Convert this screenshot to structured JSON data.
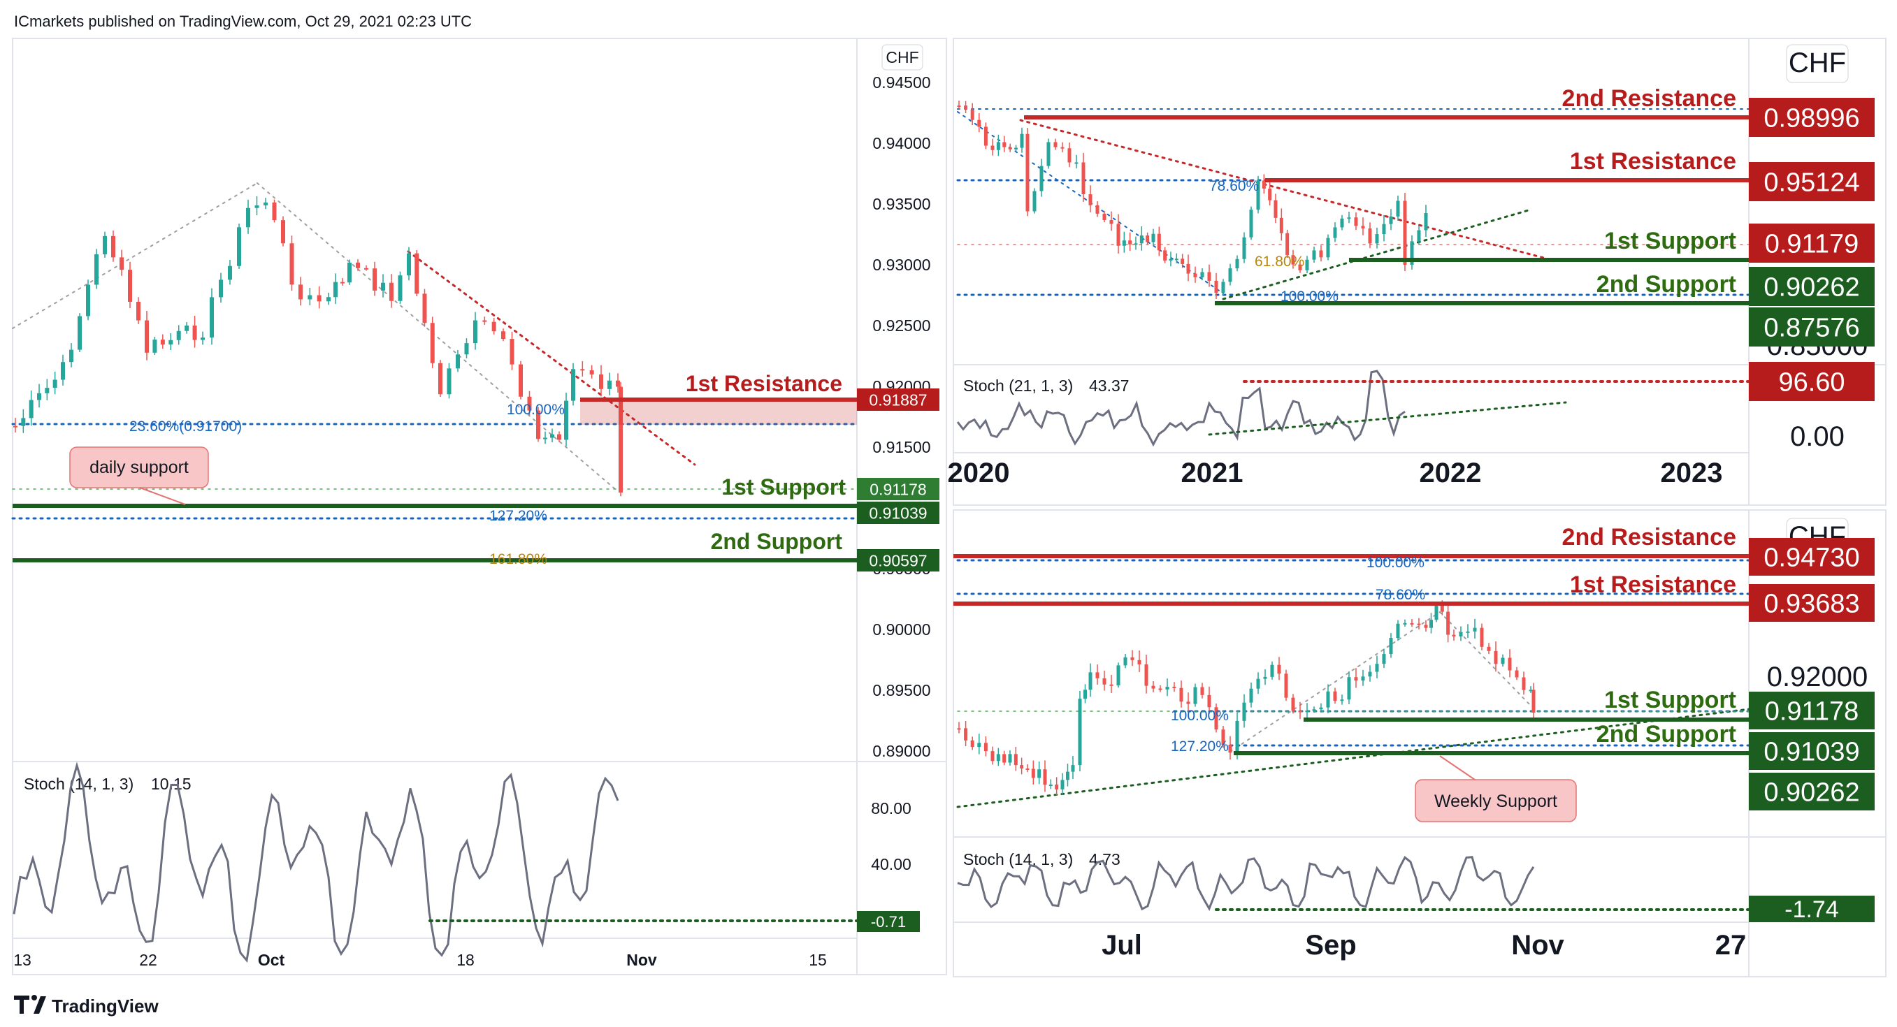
{
  "header": {
    "publisher_line": "ICmarkets published on TradingView.com, Oct 29, 2021 02:23 UTC",
    "brand": "TradingView"
  },
  "colors": {
    "up": "#26a69a",
    "down": "#ef5350",
    "resistance": "#c62828",
    "support": "#1b5e20",
    "fib_blue": "#1565c0",
    "fib_gold": "#b8860b",
    "stoch_line": "#6b6f80"
  },
  "chart_data": [
    {
      "id": "daily",
      "type": "candlestick",
      "currency": "CHF",
      "x_ticks": [
        "13",
        "22",
        "Oct",
        "18",
        "Nov",
        "15"
      ],
      "y_ticks": [
        "0.94500",
        "0.94000",
        "0.93500",
        "0.93000",
        "0.92500",
        "0.92000",
        "0.91500",
        "0.91000",
        "0.90500",
        "0.90000",
        "0.89500",
        "0.89000"
      ],
      "ylim": [
        0.887,
        0.9475
      ],
      "levels": [
        {
          "label": "1st Resistance",
          "price": "0.91887",
          "role": "resistance"
        },
        {
          "label": "1st Support",
          "price": "0.91039",
          "role": "support"
        },
        {
          "label": "2nd Support",
          "price": "0.90597",
          "role": "support"
        }
      ],
      "current_price": "0.91178",
      "fib_labels": [
        "23.60%(0.91700)",
        "100.00%",
        "127.20%",
        "161.80%"
      ],
      "note": "daily support",
      "stoch": {
        "title": "Stoch (14, 1, 3)",
        "value": "10.15",
        "y_ticks": [
          "80.00",
          "40.00"
        ],
        "tag": "-0.71"
      }
    },
    {
      "id": "weekly",
      "type": "candlestick",
      "currency": "CHF",
      "x_ticks": [
        "2020",
        "2021",
        "2022",
        "2023"
      ],
      "y_ticks": [
        "0.85000"
      ],
      "levels": [
        {
          "label": "2nd Resistance",
          "price": "0.98996",
          "role": "resistance"
        },
        {
          "label": "1st Resistance",
          "price": "0.95124",
          "role": "resistance"
        },
        {
          "label": "1st Support",
          "price": "0.90262",
          "role": "support"
        },
        {
          "label": "2nd Support",
          "price": "0.87576",
          "role": "support"
        }
      ],
      "current_price": "0.91179",
      "fib_labels": [
        "78.60%",
        "61.80%",
        "100.00%"
      ],
      "stoch": {
        "title": "Stoch (21, 1, 3)",
        "value": "43.37",
        "y_ticks": [
          "0.00"
        ],
        "tag": "96.60"
      }
    },
    {
      "id": "h4",
      "type": "candlestick",
      "currency": "CHF",
      "x_ticks": [
        "Jul",
        "Sep",
        "Nov",
        "27"
      ],
      "y_ticks": [
        "0.92000"
      ],
      "levels": [
        {
          "label": "2nd Resistance",
          "price": "0.94730",
          "role": "resistance"
        },
        {
          "label": "1st Resistance",
          "price": "0.93683",
          "role": "resistance"
        },
        {
          "label": "1st Support",
          "price": "0.91039",
          "role": "support"
        },
        {
          "label": "2nd Support",
          "price": "0.90262",
          "role": "support"
        }
      ],
      "current_price": "0.91178",
      "fib_labels": [
        "100.00%",
        "78.60%",
        "100.00%",
        "127.20%"
      ],
      "note": "Weekly Support",
      "stoch": {
        "title": "Stoch (14, 1, 3)",
        "value": "4.73",
        "tag": "-1.74"
      }
    }
  ]
}
